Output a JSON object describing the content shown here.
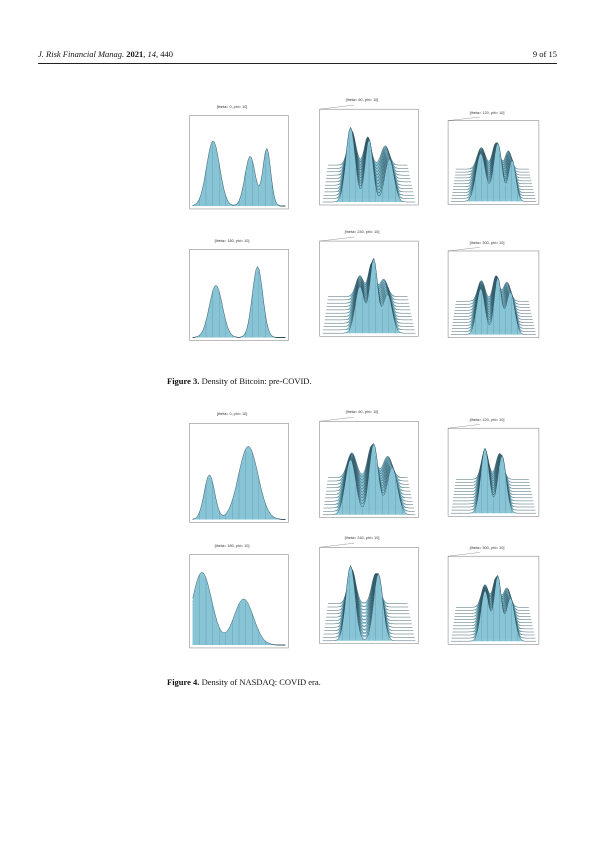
{
  "header": {
    "journal": "J. Risk Financial Manag.",
    "year": "2021",
    "volume": "14",
    "article": "440",
    "page_label": "9 of 15"
  },
  "figures": [
    {
      "label": "Figure 3.",
      "caption": "Density of Bitcoin: pre-COVID.",
      "panels": [
        {
          "title": "[theta= 0, phi= 10]"
        },
        {
          "title": "[theta= 60, phi= 10]"
        },
        {
          "title": "[theta= 120, phi= 10]"
        },
        {
          "title": "[theta= 180, phi= 10]"
        },
        {
          "title": "[theta= 240, phi= 10]"
        },
        {
          "title": "[theta= 300, phi= 10]"
        }
      ]
    },
    {
      "label": "Figure 4.",
      "caption": "Density of NASDAQ: COVID era.",
      "panels": [
        {
          "title": "[theta= 0, phi= 10]"
        },
        {
          "title": "[theta= 60, phi= 10]"
        },
        {
          "title": "[theta= 120, phi= 10]"
        },
        {
          "title": "[theta= 180, phi= 10]"
        },
        {
          "title": "[theta= 240, phi= 10]"
        },
        {
          "title": "[theta= 300, phi= 10]"
        }
      ]
    }
  ],
  "colors": {
    "surface": "#86c4d6",
    "mesh": "#2a4f5c",
    "box": "#555555"
  }
}
